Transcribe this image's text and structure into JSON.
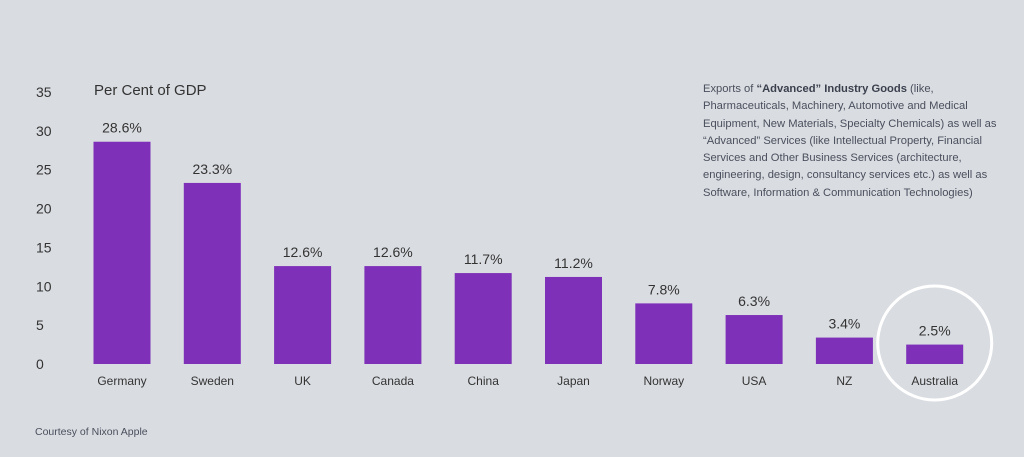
{
  "chart_data": {
    "type": "bar",
    "title": "",
    "ylabel": "Per Cent of GDP",
    "xlabel": "",
    "ylim": [
      0,
      35
    ],
    "yticks": [
      0,
      5,
      10,
      15,
      20,
      25,
      30,
      35
    ],
    "grid": false,
    "categories": [
      "Germany",
      "Sweden",
      "UK",
      "Canada",
      "China",
      "Japan",
      "Norway",
      "USA",
      "NZ",
      "Australia"
    ],
    "values": [
      28.6,
      23.3,
      12.6,
      12.6,
      11.7,
      11.2,
      7.8,
      6.3,
      3.4,
      2.5
    ],
    "value_labels": [
      "28.6%",
      "23.3%",
      "12.6%",
      "12.6%",
      "11.7%",
      "11.2%",
      "7.8%",
      "6.3%",
      "3.4%",
      "2.5%"
    ],
    "bar_color": "#7e30b8",
    "highlight": {
      "category": "Australia",
      "style": "white circle"
    }
  },
  "annotation": {
    "prefix": "Exports of ",
    "bold": "“Advanced” Industry Goods",
    "rest": " (like, Pharmaceuticals, Machinery, Automotive and Medical Equipment, New Materials, Specialty Chemicals) as well as “Advanced” Services (like Intellectual Property, Financial Services and Other Business Services (architecture, engineering, design, consultancy services etc.) as well as Software, Information & Communication Technologies)"
  },
  "credit": "Courtesy of Nixon Apple",
  "colors": {
    "background": "#d9dce1",
    "bar": "#7e30b8",
    "highlight_ring": "#ffffff",
    "text": "#333333"
  }
}
